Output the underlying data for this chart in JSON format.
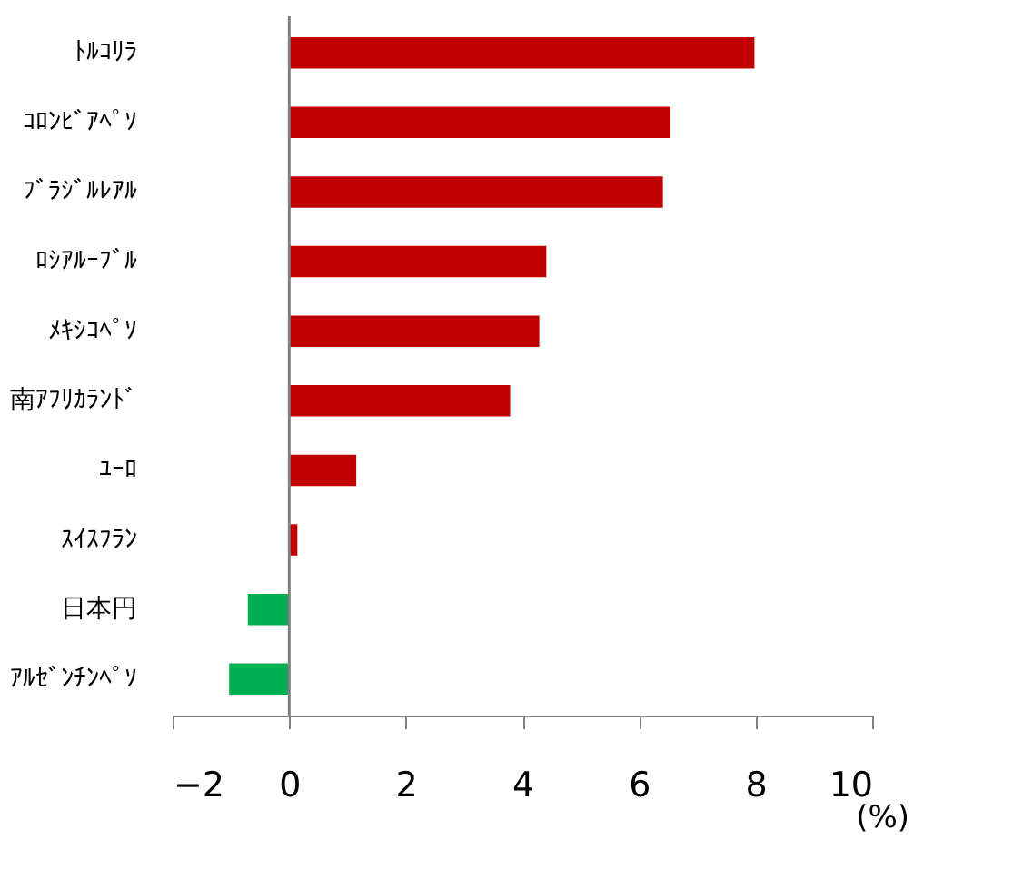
{
  "chart_data": {
    "type": "bar",
    "orientation": "horizontal",
    "xlabel": "(%)",
    "categories": [
      "ﾄﾙｺﾘﾗ",
      "ｺﾛﾝﾋﾞｱﾍﾟｿ",
      "ﾌﾞﾗｼﾞﾙﾚｱﾙ",
      "ﾛｼｱﾙｰﾌﾞﾙ",
      "ﾒｷｼｺﾍﾟｿ",
      "南ｱﾌﾘｶﾗﾝﾄﾞ",
      "ﾕｰﾛ",
      "ｽｲｽﾌﾗﾝ",
      "日本円",
      "ｱﾙｾﾞﾝﾁﾝﾍﾟｿ"
    ],
    "values": [
      7.98,
      6.54,
      6.41,
      4.41,
      4.29,
      3.79,
      1.15,
      0.14,
      -0.71,
      -1.03
    ],
    "colors": [
      "#c00000",
      "#c00000",
      "#c00000",
      "#c00000",
      "#c00000",
      "#c00000",
      "#c00000",
      "#c00000",
      "#00b050",
      "#00b050"
    ],
    "xlim": [
      -2,
      10
    ],
    "xticks": [
      -2,
      0,
      2,
      4,
      6,
      8,
      10
    ],
    "ref_lines": [
      {
        "axis": "x",
        "value": 0,
        "color": "#808080"
      }
    ],
    "grid": false
  }
}
